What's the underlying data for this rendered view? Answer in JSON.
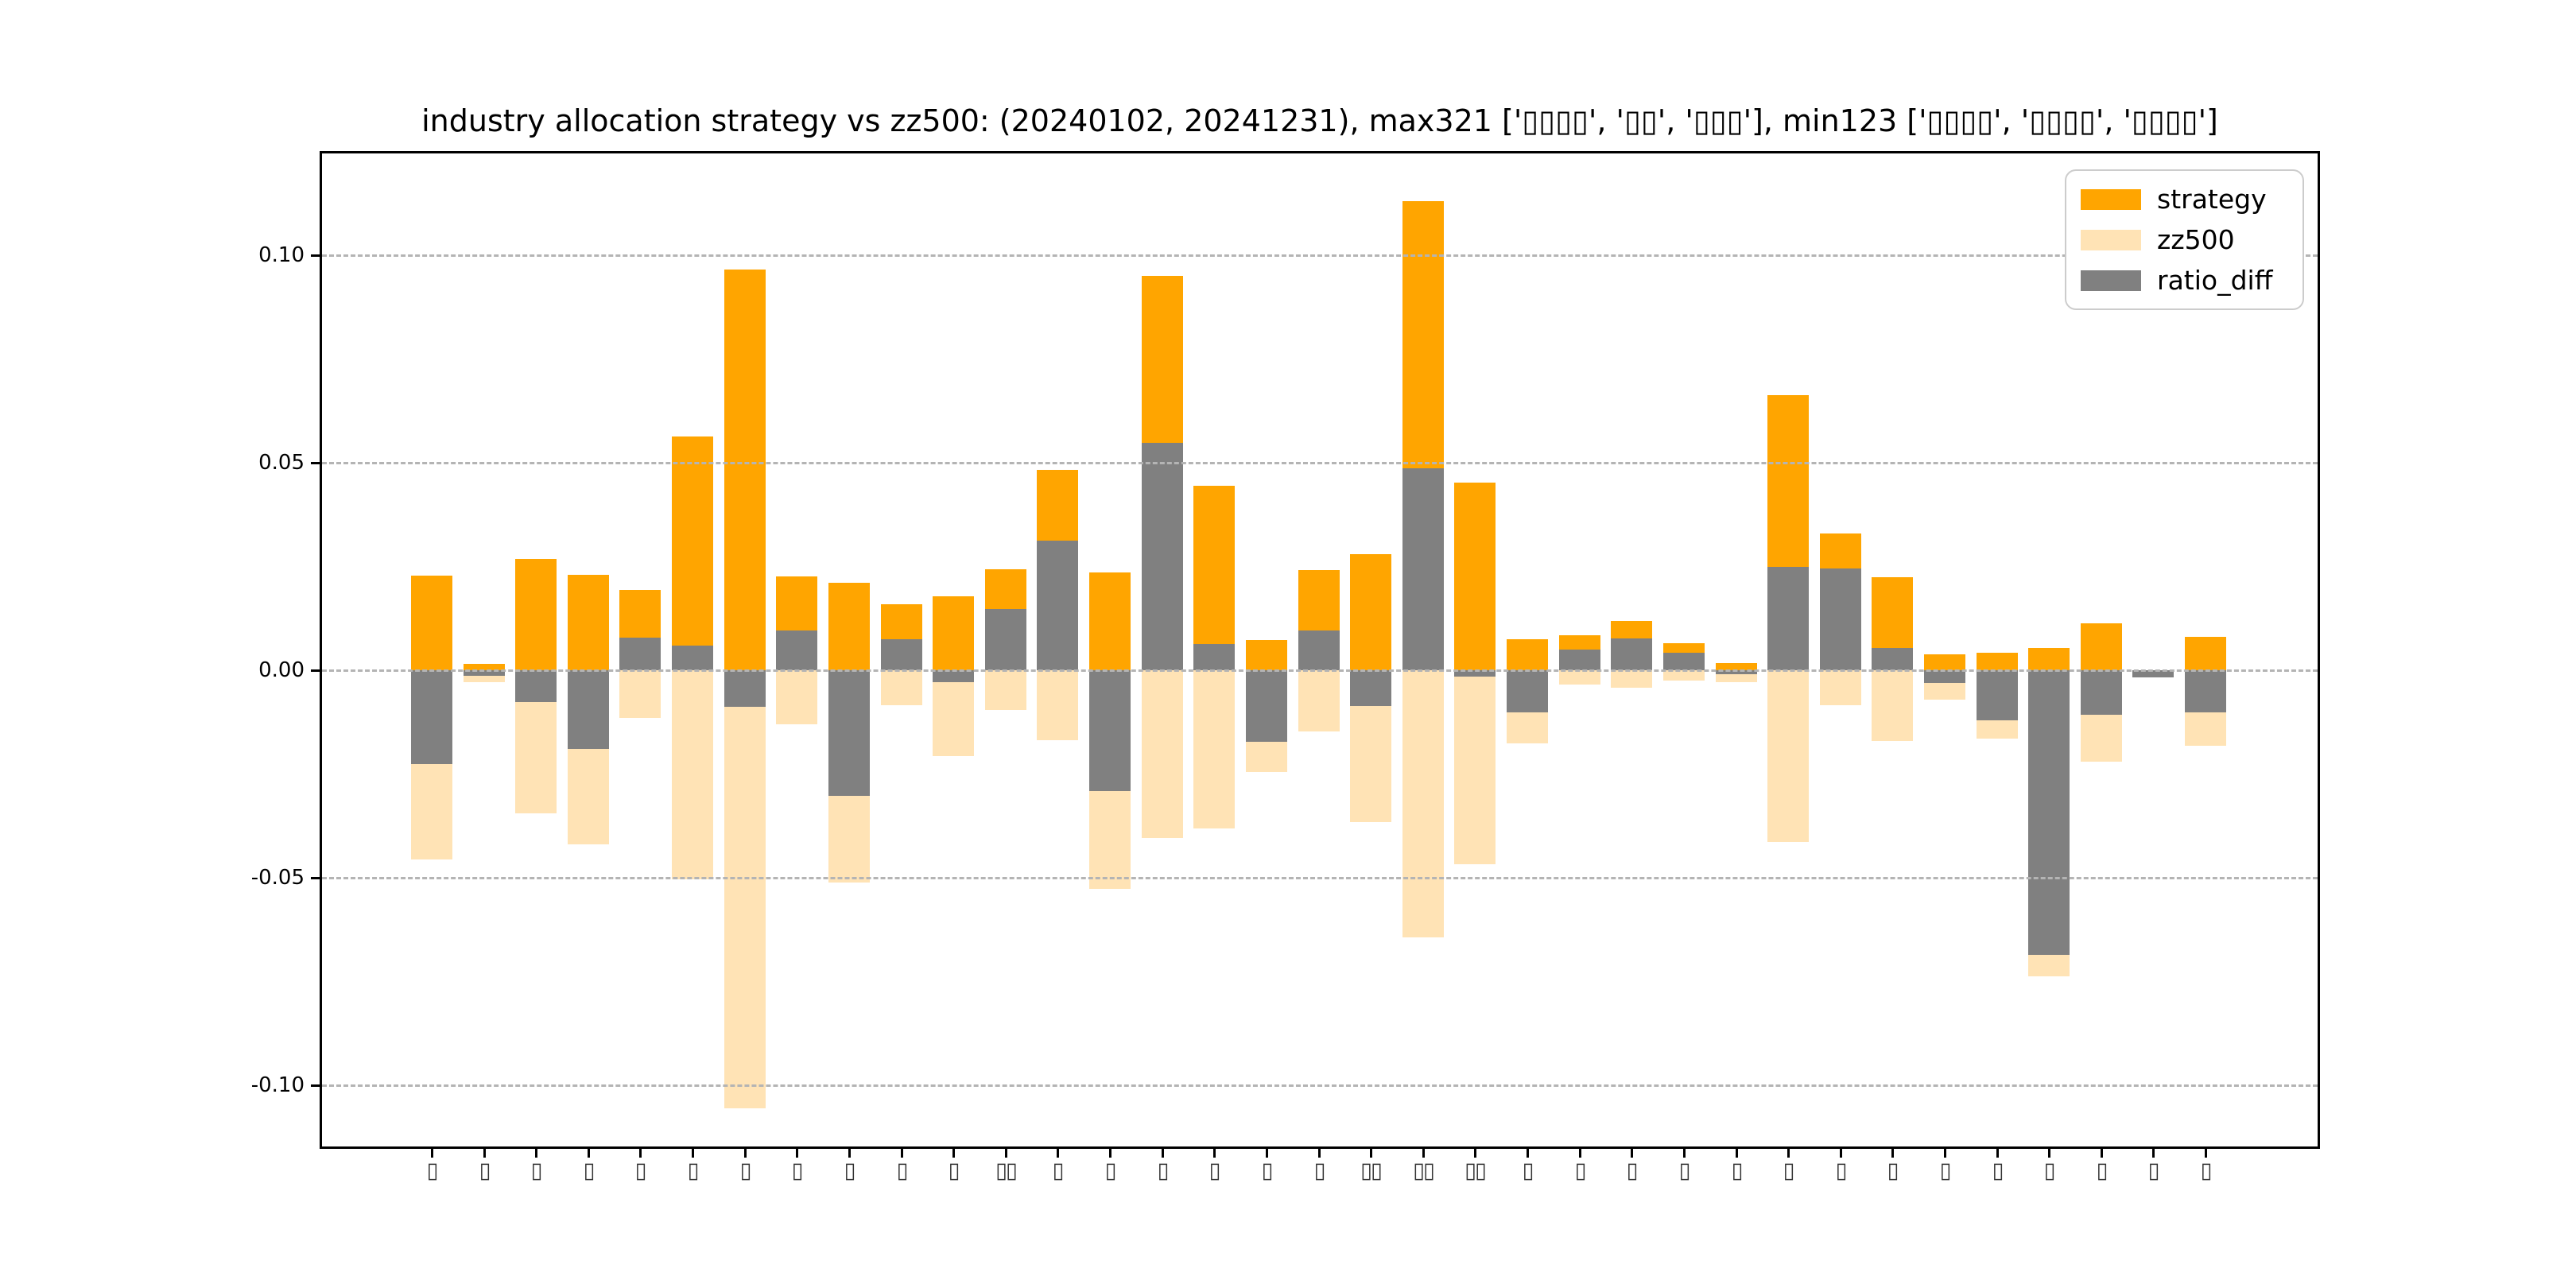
{
  "title": "industry allocation strategy vs zz500: (20240102, 20241231), max321 ['▯▯▯▯', '▯▯', '▯▯▯'], min123 ['▯▯▯▯', '▯▯▯▯', '▯▯▯▯']",
  "legend": {
    "items": [
      {
        "label": "strategy",
        "color": "#FFA500"
      },
      {
        "label": "zz500",
        "color": "#FFE3B5"
      },
      {
        "label": "ratio_diff",
        "color": "#808080"
      }
    ]
  },
  "y_axis": {
    "tick_labels": [
      "0.10",
      "0.05",
      "0.00",
      "-0.05",
      "-0.10"
    ],
    "tick_values": [
      0.1,
      0.05,
      0.0,
      -0.05,
      -0.1
    ]
  },
  "chart_data": {
    "type": "bar",
    "title": "industry allocation strategy vs zz500: (20240102, 20241231), max321 ['▯▯▯▯', '▯▯', '▯▯▯'], min123 ['▯▯▯▯', '▯▯▯▯', '▯▯▯▯']",
    "xlabel": "",
    "ylabel": "",
    "ylim": [
      -0.1155,
      0.1245
    ],
    "yticks": [
      0.1,
      0.05,
      0.0,
      -0.05,
      -0.1
    ],
    "grid": true,
    "grid_style": "dashed",
    "legend_position": "upper right",
    "note": "zz500 series is plotted downward as negative bars; ratio_diff = strategy - zz500 is drawn as a gray overlay from zero; x tick labels render as missing-glyph boxes",
    "categories": [
      "▯",
      "▯",
      "▯",
      "▯",
      "▯",
      "▯",
      "▯",
      "▯",
      "▯",
      "▯",
      "▯",
      "▯▯",
      "▯",
      "▯",
      "▯",
      "▯",
      "▯",
      "▯",
      "▯▯",
      "▯▯",
      "▯▯",
      "▯",
      "▯",
      "▯",
      "▯",
      "▯",
      "▯",
      "▯",
      "▯",
      "▯",
      "▯",
      "▯",
      "▯",
      "▯",
      "▯"
    ],
    "series": [
      {
        "name": "strategy",
        "color": "#FFA500",
        "direction": "up",
        "values": [
          0.0228,
          0.0015,
          0.0268,
          0.023,
          0.0194,
          0.0563,
          0.0966,
          0.0227,
          0.021,
          0.0159,
          0.0178,
          0.0243,
          0.0482,
          0.0236,
          0.0951,
          0.0445,
          0.0073,
          0.0242,
          0.0279,
          0.113,
          0.0452,
          0.0074,
          0.0084,
          0.0119,
          0.0066,
          0.0018,
          0.0663,
          0.033,
          0.0224,
          0.0039,
          0.0043,
          0.0053,
          0.0113,
          0.0,
          0.0081
        ]
      },
      {
        "name": "zz500",
        "color": "#FFE3B5",
        "direction": "down",
        "values": [
          0.0455,
          0.0028,
          0.0345,
          0.042,
          0.0115,
          0.0503,
          0.1055,
          0.0131,
          0.0512,
          0.0084,
          0.0206,
          0.0096,
          0.0169,
          0.0527,
          0.0404,
          0.0382,
          0.0246,
          0.0147,
          0.0365,
          0.0643,
          0.0468,
          0.0176,
          0.0035,
          0.0042,
          0.0024,
          0.0028,
          0.0414,
          0.0084,
          0.0171,
          0.007,
          0.0164,
          0.0738,
          0.022,
          0.0017,
          0.0182
        ]
      },
      {
        "name": "ratio_diff",
        "color": "#808080",
        "direction": "signed",
        "values": [
          -0.0227,
          -0.0013,
          -0.0077,
          -0.019,
          0.0079,
          0.006,
          -0.0089,
          0.0096,
          -0.0302,
          0.0075,
          -0.0028,
          0.0147,
          0.0313,
          -0.0291,
          0.0547,
          0.0063,
          -0.0173,
          0.0095,
          -0.0086,
          0.0487,
          -0.0016,
          -0.0102,
          0.0049,
          0.0077,
          0.0042,
          -0.001,
          0.0249,
          0.0246,
          0.0053,
          -0.0031,
          -0.0121,
          -0.0685,
          -0.0107,
          -0.0017,
          -0.0101
        ]
      }
    ]
  }
}
